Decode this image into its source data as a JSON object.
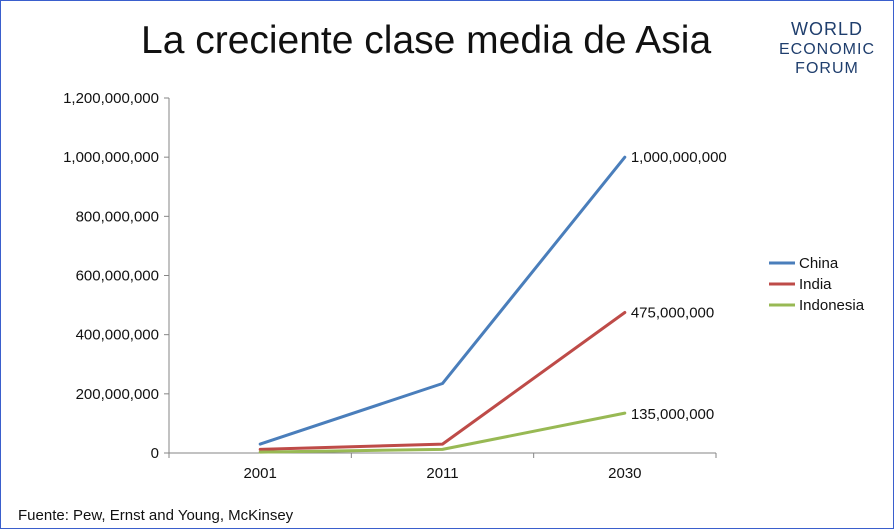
{
  "title": "La creciente clase media de Asia",
  "logo": {
    "lines": [
      "WORLD",
      "ECONOMIC",
      "FORUM"
    ]
  },
  "source": "Fuente: Pew, Ernst and Young, McKinsey",
  "chart_data": {
    "type": "line",
    "title": "La creciente clase media de Asia",
    "xlabel": "",
    "ylabel": "",
    "categories": [
      "2001",
      "2011",
      "2030"
    ],
    "ylim": [
      0,
      1200000000
    ],
    "yticks": [
      0,
      200000000,
      400000000,
      600000000,
      800000000,
      1000000000,
      1200000000
    ],
    "ytick_labels": [
      "0",
      "200,000,000",
      "400,000,000",
      "600,000,000",
      "800,000,000",
      "1,000,000,000",
      "1,200,000,000"
    ],
    "grid": false,
    "legend_position": "right",
    "series": [
      {
        "name": "China",
        "color": "#4a7ebb",
        "values": [
          30000000,
          235000000,
          1000000000
        ],
        "end_label": "1,000,000,000"
      },
      {
        "name": "India",
        "color": "#be4b48",
        "values": [
          12000000,
          30000000,
          475000000
        ],
        "end_label": "475,000,000"
      },
      {
        "name": "Indonesia",
        "color": "#98b954",
        "values": [
          3000000,
          12000000,
          135000000
        ],
        "end_label": "135,000,000"
      }
    ]
  }
}
